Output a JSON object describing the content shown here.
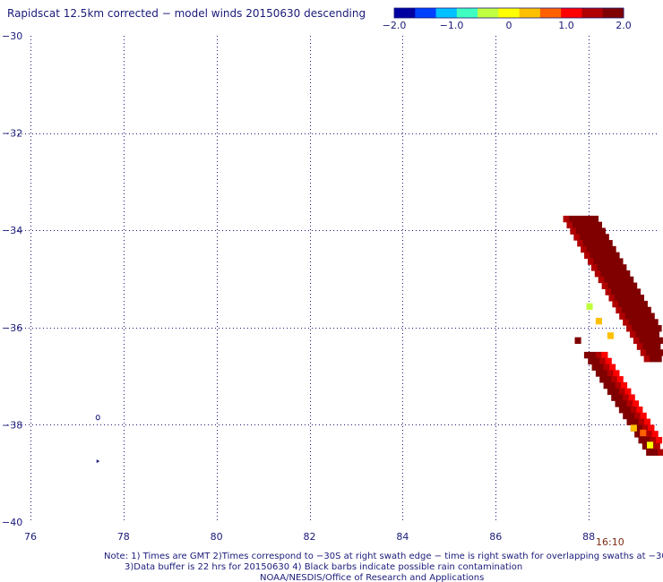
{
  "title": "Rapidscat 12.5km corrected − model winds 20150630 descending",
  "colorbar": {
    "min": -2.0,
    "max": 2.0,
    "tick_labels": [
      "−2.0",
      "−1.0",
      "0",
      "1.0",
      "2.0"
    ],
    "tick_values": [
      -2.0,
      -1.0,
      0,
      1.0,
      2.0
    ],
    "colors": [
      "#0000a0",
      "#0040ff",
      "#00c0ff",
      "#40ffc0",
      "#c0ff40",
      "#ffff00",
      "#ffc000",
      "#ff6000",
      "#ff0000",
      "#b00000",
      "#800000"
    ]
  },
  "time_label": "16:10",
  "notes": [
    "Note: 1) Times are GMT 2)Times correspond to −30S at right swath edge − time is right swath for overlapping swaths at −30S",
    "3)Data buffer is 22 hrs for 20150630 4) Black barbs indicate possible rain contamination",
    "NOAA/NESDIS/Office of Research and Applications"
  ],
  "chart_data": {
    "type": "heatmap",
    "title": "Rapidscat 12.5km corrected − model winds 20150630 descending",
    "xlim": [
      75.5,
      89.5
    ],
    "ylim": [
      -40,
      -30
    ],
    "x_ticks": [
      76,
      78,
      80,
      82,
      84,
      86,
      88
    ],
    "x_tick_labels": [
      "76",
      "78",
      "80",
      "82",
      "84",
      "86",
      "88"
    ],
    "y_ticks": [
      -30,
      -32,
      -34,
      -36,
      -38,
      -40
    ],
    "y_tick_labels": [
      "−30",
      "−32",
      "−34",
      "−36",
      "−38",
      "−40"
    ],
    "grid": true,
    "cell_size_deg": 0.125,
    "swath_bands": [
      {
        "lat_top": -33.7,
        "lat_bottom": -36.6,
        "lon_start_top": 87.45,
        "lon_start_bottom": 89.2,
        "width_deg": 0.75,
        "value_left": 1.6,
        "value_right": 2.0
      },
      {
        "lat_top": -36.5,
        "lat_bottom": -38.6,
        "lon_start_top": 87.9,
        "lon_start_bottom": 89.3,
        "width_deg": 0.55,
        "value_left": 2.0,
        "value_right": 1.2
      }
    ],
    "low_patches": [
      {
        "lon": 87.95,
        "lat": -35.5,
        "value": -0.4
      },
      {
        "lon": 88.15,
        "lat": -35.8,
        "value": 0.2
      },
      {
        "lon": 88.4,
        "lat": -36.1,
        "value": 0.4
      },
      {
        "lon": 88.9,
        "lat": -38.0,
        "value": 0.3
      },
      {
        "lon": 89.1,
        "lat": -38.1,
        "value": 0.6
      },
      {
        "lon": 89.25,
        "lat": -38.35,
        "value": 0.0
      }
    ],
    "isolated_cells": [
      {
        "lon": 87.7,
        "lat": -36.2,
        "value": 2.0
      }
    ],
    "markers": [
      {
        "lon": 77.45,
        "lat": -37.85,
        "symbol": "small-circle"
      },
      {
        "lon": 77.45,
        "lat": -38.75,
        "symbol": "arrow-tip"
      }
    ]
  }
}
